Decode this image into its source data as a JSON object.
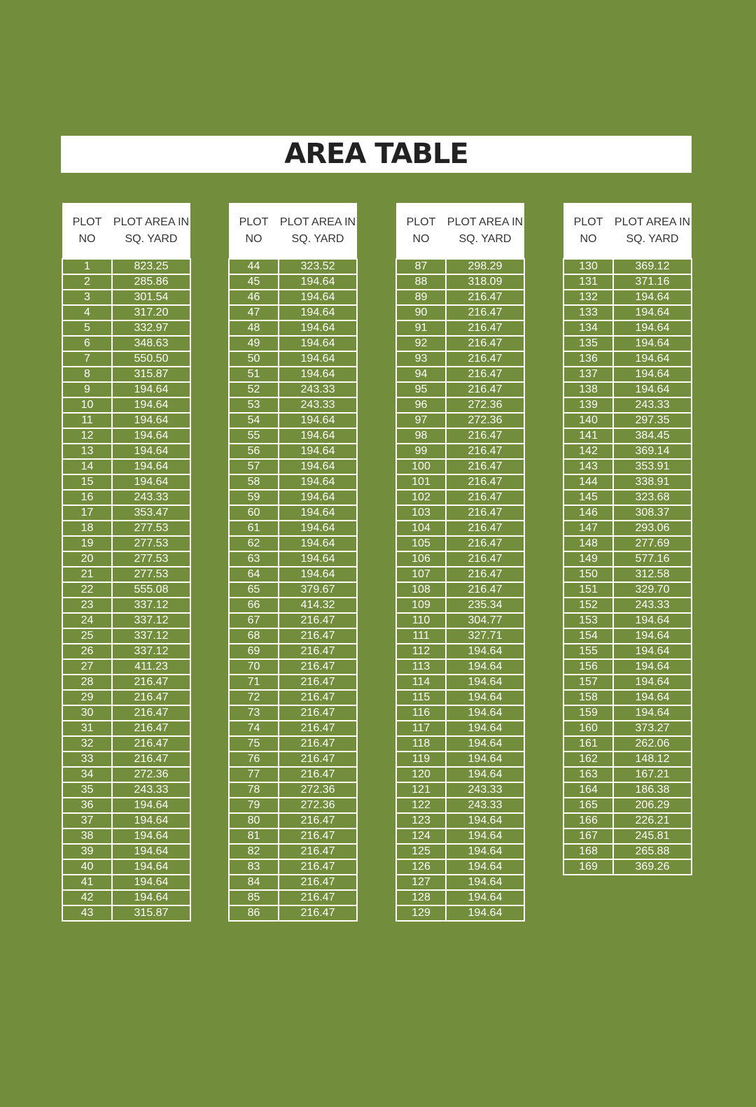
{
  "title": "AREA TABLE",
  "tables": [
    {
      "header": [
        [
          "PLOT",
          "NO"
        ],
        [
          "PLOT AREA IN",
          "SQ. YARD"
        ]
      ],
      "rows": [
        [
          "1",
          "823.25"
        ],
        [
          "2",
          "285.86"
        ],
        [
          "3",
          "301.54"
        ],
        [
          "4",
          "317.20"
        ],
        [
          "5",
          "332.97"
        ],
        [
          "6",
          "348.63"
        ],
        [
          "7",
          "550.50"
        ],
        [
          "8",
          "315.87"
        ],
        [
          "9",
          "194.64"
        ],
        [
          "10",
          "194.64"
        ],
        [
          "11",
          "194.64"
        ],
        [
          "12",
          "194.64"
        ],
        [
          "13",
          "194.64"
        ],
        [
          "14",
          "194.64"
        ],
        [
          "15",
          "194.64"
        ],
        [
          "16",
          "243.33"
        ],
        [
          "17",
          "353.47"
        ],
        [
          "18",
          "277.53"
        ],
        [
          "19",
          "277.53"
        ],
        [
          "20",
          "277.53"
        ],
        [
          "21",
          "277.53"
        ],
        [
          "22",
          "555.08"
        ],
        [
          "23",
          "337.12"
        ],
        [
          "24",
          "337.12"
        ],
        [
          "25",
          "337.12"
        ],
        [
          "26",
          "337.12"
        ],
        [
          "27",
          "411.23"
        ],
        [
          "28",
          "216.47"
        ],
        [
          "29",
          "216.47"
        ],
        [
          "30",
          "216.47"
        ],
        [
          "31",
          "216.47"
        ],
        [
          "32",
          "216.47"
        ],
        [
          "33",
          "216.47"
        ],
        [
          "34",
          "272.36"
        ],
        [
          "35",
          "243.33"
        ],
        [
          "36",
          "194.64"
        ],
        [
          "37",
          "194.64"
        ],
        [
          "38",
          "194.64"
        ],
        [
          "39",
          "194.64"
        ],
        [
          "40",
          "194.64"
        ],
        [
          "41",
          "194.64"
        ],
        [
          "42",
          "194.64"
        ],
        [
          "43",
          "315.87"
        ]
      ]
    },
    {
      "header": [
        [
          "PLOT",
          "NO"
        ],
        [
          "PLOT AREA IN",
          "SQ. YARD"
        ]
      ],
      "rows": [
        [
          "44",
          "323.52"
        ],
        [
          "45",
          "194.64"
        ],
        [
          "46",
          "194.64"
        ],
        [
          "47",
          "194.64"
        ],
        [
          "48",
          "194.64"
        ],
        [
          "49",
          "194.64"
        ],
        [
          "50",
          "194.64"
        ],
        [
          "51",
          "194.64"
        ],
        [
          "52",
          "243.33"
        ],
        [
          "53",
          "243.33"
        ],
        [
          "54",
          "194.64"
        ],
        [
          "55",
          "194.64"
        ],
        [
          "56",
          "194.64"
        ],
        [
          "57",
          "194.64"
        ],
        [
          "58",
          "194.64"
        ],
        [
          "59",
          "194.64"
        ],
        [
          "60",
          "194.64"
        ],
        [
          "61",
          "194.64"
        ],
        [
          "62",
          "194.64"
        ],
        [
          "63",
          "194.64"
        ],
        [
          "64",
          "194.64"
        ],
        [
          "65",
          "379.67"
        ],
        [
          "66",
          "414.32"
        ],
        [
          "67",
          "216.47"
        ],
        [
          "68",
          "216.47"
        ],
        [
          "69",
          "216.47"
        ],
        [
          "70",
          "216.47"
        ],
        [
          "71",
          "216.47"
        ],
        [
          "72",
          "216.47"
        ],
        [
          "73",
          "216.47"
        ],
        [
          "74",
          "216.47"
        ],
        [
          "75",
          "216.47"
        ],
        [
          "76",
          "216.47"
        ],
        [
          "77",
          "216.47"
        ],
        [
          "78",
          "272.36"
        ],
        [
          "79",
          "272.36"
        ],
        [
          "80",
          "216.47"
        ],
        [
          "81",
          "216.47"
        ],
        [
          "82",
          "216.47"
        ],
        [
          "83",
          "216.47"
        ],
        [
          "84",
          "216.47"
        ],
        [
          "85",
          "216.47"
        ],
        [
          "86",
          "216.47"
        ]
      ]
    },
    {
      "header": [
        [
          "PLOT",
          "NO"
        ],
        [
          "PLOT AREA IN",
          "SQ. YARD"
        ]
      ],
      "rows": [
        [
          "87",
          "298.29"
        ],
        [
          "88",
          "318.09"
        ],
        [
          "89",
          "216.47"
        ],
        [
          "90",
          "216.47"
        ],
        [
          "91",
          "216.47"
        ],
        [
          "92",
          "216.47"
        ],
        [
          "93",
          "216.47"
        ],
        [
          "94",
          "216.47"
        ],
        [
          "95",
          "216.47"
        ],
        [
          "96",
          "272.36"
        ],
        [
          "97",
          "272.36"
        ],
        [
          "98",
          "216.47"
        ],
        [
          "99",
          "216.47"
        ],
        [
          "100",
          "216.47"
        ],
        [
          "101",
          "216.47"
        ],
        [
          "102",
          "216.47"
        ],
        [
          "103",
          "216.47"
        ],
        [
          "104",
          "216.47"
        ],
        [
          "105",
          "216.47"
        ],
        [
          "106",
          "216.47"
        ],
        [
          "107",
          "216.47"
        ],
        [
          "108",
          "216.47"
        ],
        [
          "109",
          "235.34"
        ],
        [
          "110",
          "304.77"
        ],
        [
          "111",
          "327.71"
        ],
        [
          "112",
          "194.64"
        ],
        [
          "113",
          "194.64"
        ],
        [
          "114",
          "194.64"
        ],
        [
          "115",
          "194.64"
        ],
        [
          "116",
          "194.64"
        ],
        [
          "117",
          "194.64"
        ],
        [
          "118",
          "194.64"
        ],
        [
          "119",
          "194.64"
        ],
        [
          "120",
          "194.64"
        ],
        [
          "121",
          "243.33"
        ],
        [
          "122",
          "243.33"
        ],
        [
          "123",
          "194.64"
        ],
        [
          "124",
          "194.64"
        ],
        [
          "125",
          "194.64"
        ],
        [
          "126",
          "194.64"
        ],
        [
          "127",
          "194.64"
        ],
        [
          "128",
          "194.64"
        ],
        [
          "129",
          "194.64"
        ]
      ]
    },
    {
      "header": [
        [
          "PLOT",
          "NO"
        ],
        [
          "PLOT AREA IN",
          "SQ. YARD"
        ]
      ],
      "rows": [
        [
          "130",
          "369.12"
        ],
        [
          "131",
          "371.16"
        ],
        [
          "132",
          "194.64"
        ],
        [
          "133",
          "194.64"
        ],
        [
          "134",
          "194.64"
        ],
        [
          "135",
          "194.64"
        ],
        [
          "136",
          "194.64"
        ],
        [
          "137",
          "194.64"
        ],
        [
          "138",
          "194.64"
        ],
        [
          "139",
          "243.33"
        ],
        [
          "140",
          "297.35"
        ],
        [
          "141",
          "384.45"
        ],
        [
          "142",
          "369.14"
        ],
        [
          "143",
          "353.91"
        ],
        [
          "144",
          "338.91"
        ],
        [
          "145",
          "323.68"
        ],
        [
          "146",
          "308.37"
        ],
        [
          "147",
          "293.06"
        ],
        [
          "148",
          "277.69"
        ],
        [
          "149",
          "577.16"
        ],
        [
          "150",
          "312.58"
        ],
        [
          "151",
          "329.70"
        ],
        [
          "152",
          "243.33"
        ],
        [
          "153",
          "194.64"
        ],
        [
          "154",
          "194.64"
        ],
        [
          "155",
          "194.64"
        ],
        [
          "156",
          "194.64"
        ],
        [
          "157",
          "194.64"
        ],
        [
          "158",
          "194.64"
        ],
        [
          "159",
          "194.64"
        ],
        [
          "160",
          "373.27"
        ],
        [
          "161",
          "262.06"
        ],
        [
          "162",
          "148.12"
        ],
        [
          "163",
          "167.21"
        ],
        [
          "164",
          "186.38"
        ],
        [
          "165",
          "206.29"
        ],
        [
          "166",
          "226.21"
        ],
        [
          "167",
          "245.81"
        ],
        [
          "168",
          "265.88"
        ],
        [
          "169",
          "369.26"
        ]
      ]
    }
  ]
}
